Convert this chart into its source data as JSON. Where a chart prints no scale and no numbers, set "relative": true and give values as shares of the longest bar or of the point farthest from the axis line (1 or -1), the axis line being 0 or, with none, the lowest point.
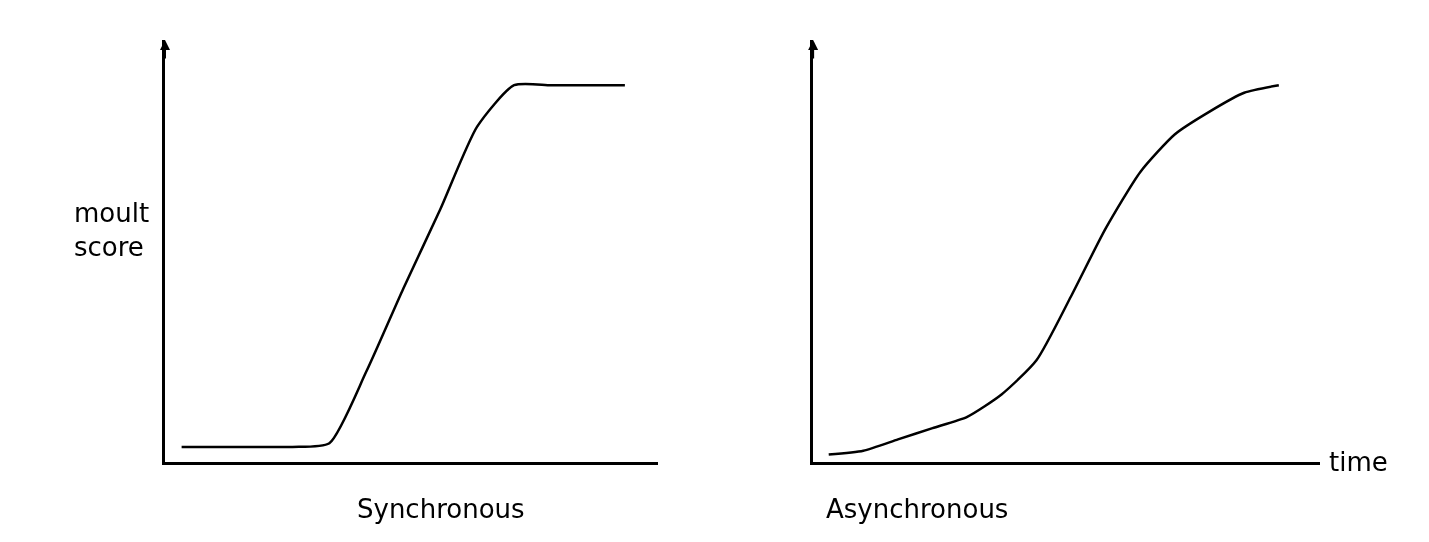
{
  "chart_data": [
    {
      "type": "line",
      "title": "Synchronous",
      "ylabel": "moult score",
      "relative": true,
      "categories": [
        null,
        null,
        null,
        null,
        null,
        null,
        null,
        null,
        null,
        null,
        null,
        null,
        null
      ],
      "series": [
        {
          "color": "#000000",
          "values": [
            0.04,
            0.04,
            0.04,
            0.04,
            0.05,
            0.24,
            0.46,
            0.67,
            0.89,
            1.0,
            1.0,
            1.0,
            1.0
          ]
        }
      ]
    },
    {
      "type": "line",
      "title": "Asynchronous",
      "xlabel": "time",
      "relative": true,
      "categories": [
        null,
        null,
        null,
        null,
        null,
        null,
        null,
        null,
        null,
        null,
        null,
        null,
        null,
        null
      ],
      "series": [
        {
          "color": "#000000",
          "values": [
            0.02,
            0.03,
            0.06,
            0.09,
            0.12,
            0.18,
            0.27,
            0.44,
            0.62,
            0.77,
            0.87,
            0.93,
            0.98,
            1.0
          ]
        }
      ]
    }
  ]
}
